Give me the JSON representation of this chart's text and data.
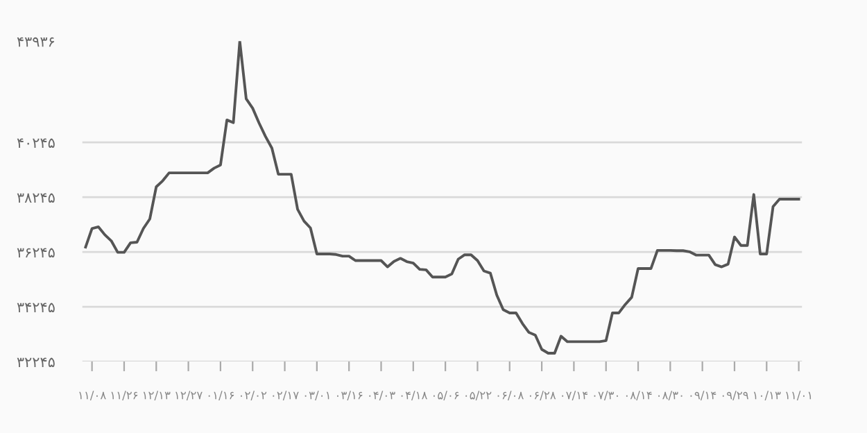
{
  "chart_data": {
    "type": "line",
    "color": "#555555",
    "line_style": "solid",
    "grid": "y",
    "categories": [
      null,
      "۱۱/۰۸",
      null,
      null,
      null,
      null,
      "۱۱/۲۶",
      null,
      null,
      null,
      null,
      "۱۲/۱۳",
      null,
      null,
      null,
      null,
      "۱۲/۲۷",
      null,
      null,
      null,
      null,
      "۰۱/۱۶",
      null,
      null,
      null,
      null,
      "۰۲/۰۲",
      null,
      null,
      null,
      null,
      "۰۲/۱۷",
      null,
      null,
      null,
      null,
      "۰۳/۰۱",
      null,
      null,
      null,
      null,
      "۰۳/۱۶",
      null,
      null,
      null,
      null,
      "۰۴/۰۳",
      null,
      null,
      null,
      null,
      "۰۴/۱۸",
      null,
      null,
      null,
      null,
      "۰۵/۰۶",
      null,
      null,
      null,
      null,
      "۰۵/۲۲",
      null,
      null,
      null,
      null,
      "۰۶/۰۸",
      null,
      null,
      null,
      null,
      "۰۶/۲۸",
      null,
      null,
      null,
      null,
      "۰۷/۱۴",
      null,
      null,
      null,
      null,
      "۰۷/۳۰",
      null,
      null,
      null,
      null,
      "۰۸/۱۴",
      null,
      null,
      null,
      null,
      "۰۸/۳۰",
      null,
      null,
      null,
      null,
      "۰۹/۱۴",
      null,
      null,
      null,
      null,
      "۰۹/۲۹",
      null,
      null,
      null,
      null,
      "۱۰/۱۳",
      null,
      null,
      null,
      null,
      "۱۱/۰۱"
    ],
    "values": [
      36420,
      37100,
      37160,
      36870,
      36650,
      36230,
      36230,
      36580,
      36600,
      37100,
      37450,
      38620,
      38840,
      39130,
      39130,
      39130,
      39130,
      39130,
      39130,
      39130,
      39300,
      39420,
      41060,
      40960,
      43930,
      41830,
      41490,
      40950,
      40460,
      40030,
      39080,
      39080,
      39080,
      37800,
      37370,
      37120,
      36170,
      36170,
      36170,
      36150,
      36090,
      36090,
      35930,
      35930,
      35930,
      35930,
      35930,
      35700,
      35900,
      36010,
      35890,
      35840,
      35610,
      35590,
      35330,
      35330,
      35330,
      35440,
      35980,
      36140,
      36140,
      35930,
      35550,
      35470,
      34670,
      34140,
      34020,
      34020,
      33630,
      33310,
      33210,
      32690,
      32550,
      32550,
      33170,
      32970,
      32970,
      32970,
      32970,
      32970,
      32970,
      33010,
      34020,
      34020,
      34330,
      34590,
      35640,
      35640,
      35640,
      36300,
      36300,
      36300,
      36290,
      36290,
      36250,
      36130,
      36130,
      36130,
      35780,
      35700,
      35800,
      36790,
      36480,
      36480,
      38340,
      36170,
      36170,
      37900,
      38170,
      38170,
      38170,
      38170
    ],
    "ylim": [
      32245,
      43936
    ],
    "yticks": [
      {
        "value": 32245,
        "label": "۳۲۲۴۵"
      },
      {
        "value": 34245,
        "label": "۳۴۲۴۵"
      },
      {
        "value": 36245,
        "label": "۳۶۲۴۵"
      },
      {
        "value": 38245,
        "label": "۳۸۲۴۵"
      },
      {
        "value": 40245,
        "label": "۴۰۲۴۵"
      },
      {
        "value": 43936,
        "label": "۴۳۹۳۶"
      }
    ]
  }
}
